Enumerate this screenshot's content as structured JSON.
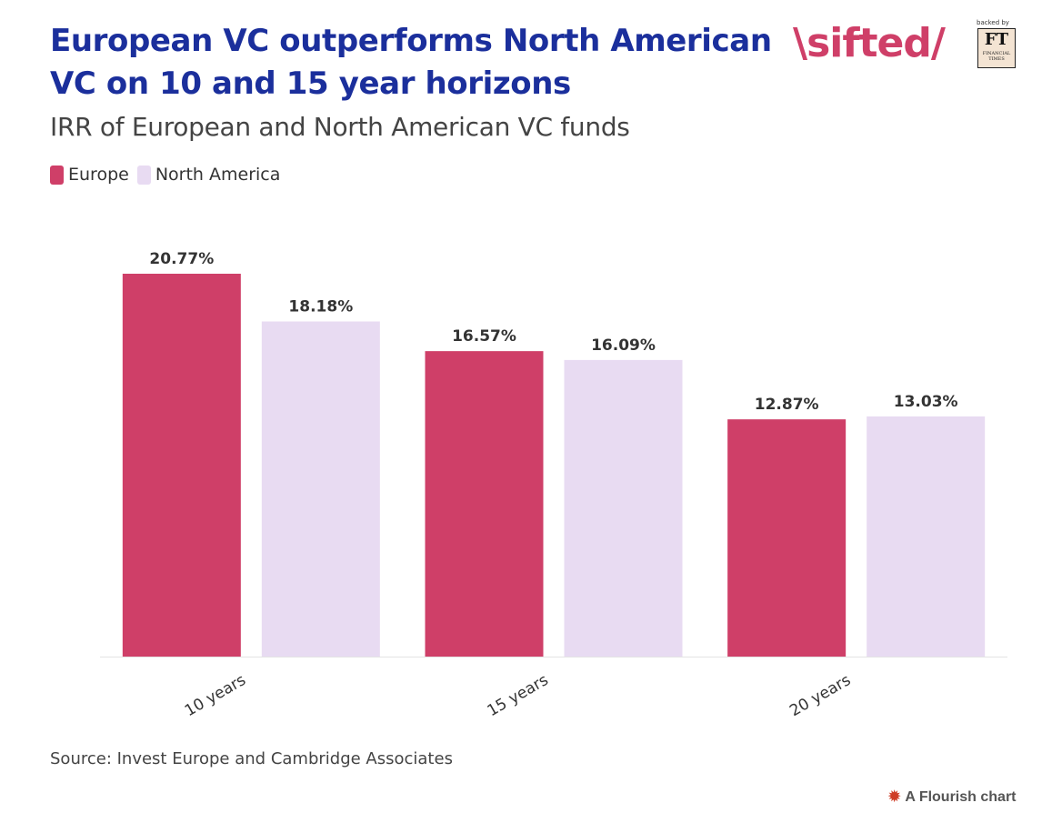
{
  "header": {
    "title_line1": "European VC outperforms North American",
    "title_line2": "VC on 10 and 15 year horizons",
    "subtitle": "IRR of European and North American VC funds"
  },
  "logo": {
    "brand_text": "\\sifted/",
    "backed_by": "backed by",
    "ft_letters": "FT",
    "ft_name_line1": "FINANCIAL",
    "ft_name_line2": "TIMES",
    "brand_color": "#cf3f68"
  },
  "legend": [
    {
      "label": "Europe",
      "color": "#cf3f68"
    },
    {
      "label": "North America",
      "color": "#e8dbf2"
    }
  ],
  "chart_data": {
    "type": "bar",
    "categories": [
      "10 years",
      "15 years",
      "20 years"
    ],
    "series": [
      {
        "name": "Europe",
        "values": [
          20.77,
          16.57,
          12.87
        ],
        "labels": [
          "20.77%",
          "16.57%",
          "12.87%"
        ],
        "color": "#cf3f68"
      },
      {
        "name": "North America",
        "values": [
          18.18,
          16.09,
          13.03
        ],
        "labels": [
          "18.18%",
          "16.09%",
          "13.03%"
        ],
        "color": "#e8dbf2"
      }
    ],
    "title": "European VC outperforms North American VC on 10 and 15 year horizons",
    "subtitle": "IRR of European and North American VC funds",
    "xlabel": "",
    "ylabel": "",
    "ylim": [
      0,
      20.77
    ],
    "grid": false,
    "legend_position": "top-left",
    "x_tick_rotation": "-30deg"
  },
  "footer": {
    "source": "Source: Invest Europe and Cambridge Associates",
    "credit": "A Flourish chart",
    "credit_icon": "flourish-sun-icon"
  }
}
